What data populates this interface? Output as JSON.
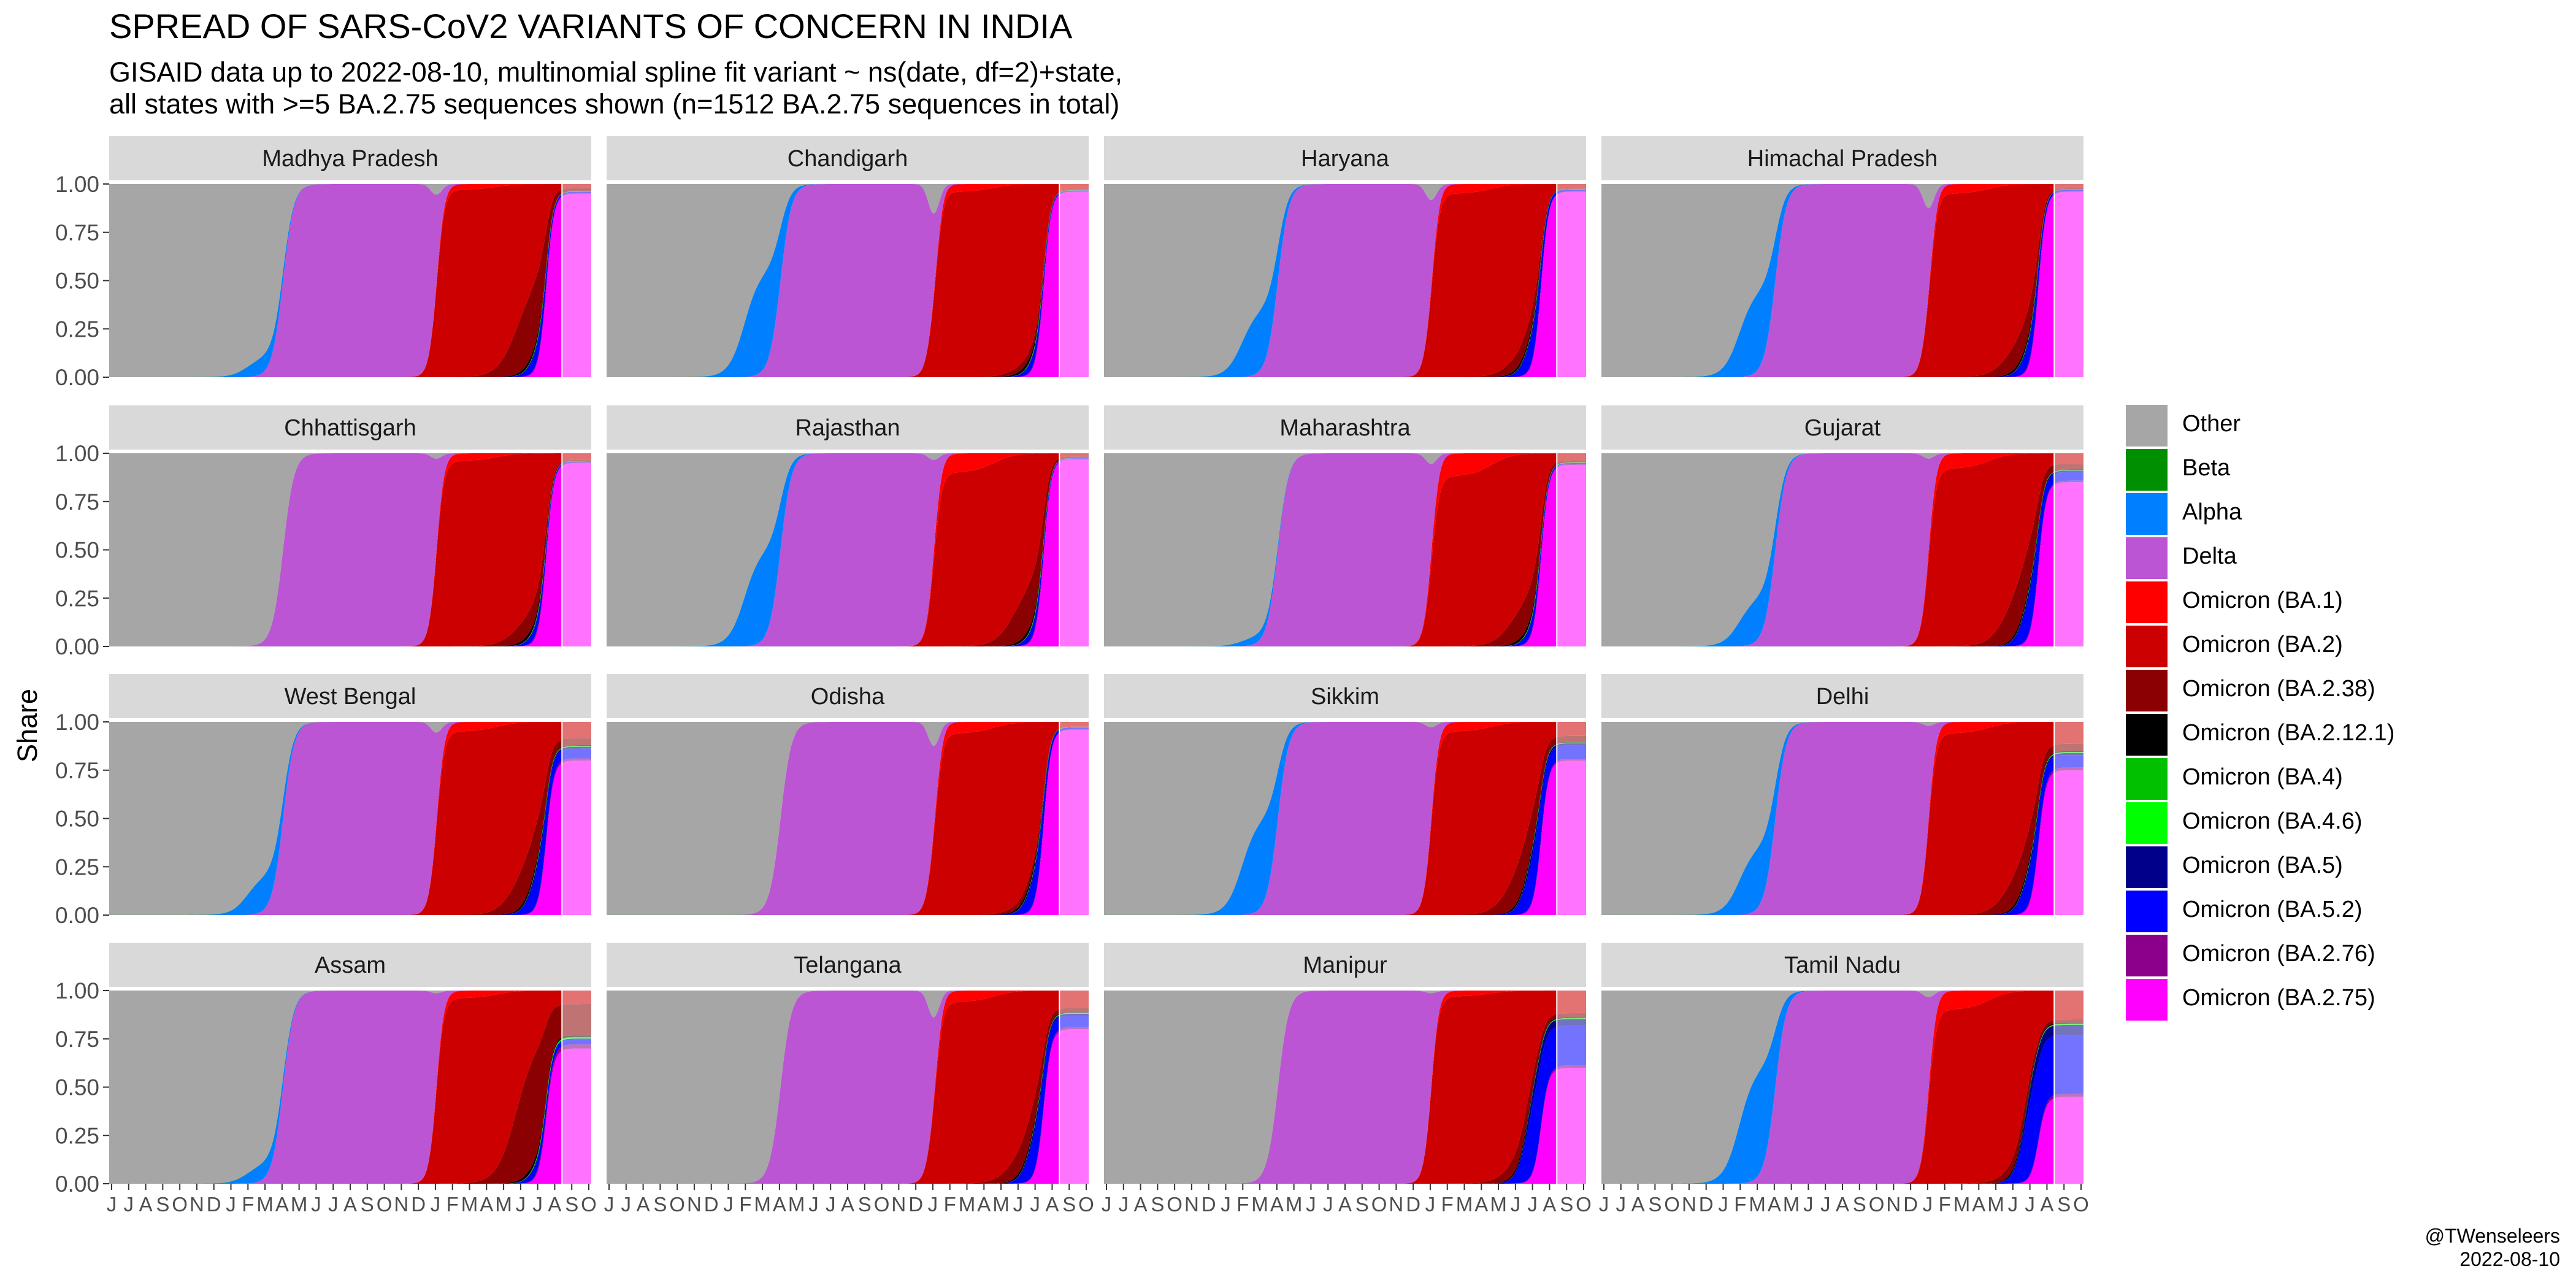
{
  "header": {
    "title": "SPREAD OF SARS-CoV2 VARIANTS OF CONCERN IN INDIA",
    "subtitle_line1": "GISAID data up to 2022-08-10, multinomial spline fit variant ~ ns(date, df=2)+state,",
    "subtitle_line2": "all states with >=5 BA.2.75 sequences shown (n=1512 BA.2.75 sequences in total)"
  },
  "credit": {
    "handle": "@TWenseleers",
    "date": "2022-08-10"
  },
  "chart_data": {
    "type": "area",
    "stacked": "fill",
    "ylabel": "Share",
    "ylim": [
      0,
      1
    ],
    "y_ticks": [
      "0.00",
      "0.25",
      "0.50",
      "0.75",
      "1.00"
    ],
    "x_ticks": [
      "J",
      "J",
      "A",
      "S",
      "O",
      "N",
      "D",
      "J",
      "F",
      "M",
      "A",
      "M",
      "J",
      "J",
      "A",
      "S",
      "O",
      "N",
      "D",
      "J",
      "F",
      "M",
      "A",
      "M",
      "J",
      "J",
      "A",
      "S",
      "O"
    ],
    "x_range_months": [
      "2020-06",
      "2022-10"
    ],
    "fitted_data_end": "2022-08-10",
    "legend_position": "right",
    "variants": [
      {
        "name": "Other",
        "color": "#A6A6A6"
      },
      {
        "name": "Beta",
        "color": "#008F00"
      },
      {
        "name": "Alpha",
        "color": "#0080FF"
      },
      {
        "name": "Delta",
        "color": "#BB55D4"
      },
      {
        "name": "Omicron (BA.1)",
        "color": "#FF0000"
      },
      {
        "name": "Omicron (BA.2)",
        "color": "#CC0000"
      },
      {
        "name": "Omicron (BA.2.38)",
        "color": "#8B0000"
      },
      {
        "name": "Omicron (BA.2.12.1)",
        "color": "#000000"
      },
      {
        "name": "Omicron (BA.4)",
        "color": "#00C000"
      },
      {
        "name": "Omicron (BA.4.6)",
        "color": "#00FF00"
      },
      {
        "name": "Omicron (BA.5)",
        "color": "#00008B"
      },
      {
        "name": "Omicron (BA.5.2)",
        "color": "#0000FF"
      },
      {
        "name": "Omicron (BA.2.76)",
        "color": "#8B008B"
      },
      {
        "name": "Omicron (BA.2.75)",
        "color": "#FF00FF"
      }
    ],
    "panels": [
      {
        "state": "Madhya Pradesh",
        "alpha_w": 0.1,
        "dip": 0.08,
        "ba1": 0.03,
        "ba238": 0.45,
        "ba5": 0.15,
        "ba275": 0.95
      },
      {
        "state": "Chandigarh",
        "alpha_w": 0.55,
        "dip": 0.22,
        "ba1": 0.04,
        "ba238": 0.05,
        "ba5": 0.1,
        "ba275": 0.96
      },
      {
        "state": "Haryana",
        "alpha_w": 0.35,
        "dip": 0.12,
        "ba1": 0.05,
        "ba238": 0.12,
        "ba5": 0.25,
        "ba275": 0.96
      },
      {
        "state": "Himachal Pradesh",
        "alpha_w": 0.45,
        "dip": 0.18,
        "ba1": 0.05,
        "ba238": 0.2,
        "ba5": 0.2,
        "ba275": 0.96
      },
      {
        "state": "Chhattisgarh",
        "alpha_w": 0.0,
        "dip": 0.04,
        "ba1": 0.04,
        "ba238": 0.15,
        "ba5": 0.1,
        "ba275": 0.95
      },
      {
        "state": "Rajasthan",
        "alpha_w": 0.5,
        "dip": 0.05,
        "ba1": 0.1,
        "ba238": 0.3,
        "ba5": 0.1,
        "ba275": 0.97
      },
      {
        "state": "Maharashtra",
        "alpha_w": 0.05,
        "dip": 0.08,
        "ba1": 0.12,
        "ba238": 0.22,
        "ba5": 0.1,
        "ba275": 0.94
      },
      {
        "state": "Gujarat",
        "alpha_w": 0.25,
        "dip": 0.04,
        "ba1": 0.08,
        "ba238": 0.35,
        "ba5": 0.35,
        "ba275": 0.85
      },
      {
        "state": "West Bengal",
        "alpha_w": 0.2,
        "dip": 0.08,
        "ba1": 0.05,
        "ba238": 0.3,
        "ba5": 0.3,
        "ba275": 0.8
      },
      {
        "state": "Odisha",
        "alpha_w": 0.0,
        "dip": 0.18,
        "ba1": 0.06,
        "ba238": 0.05,
        "ba5": 0.25,
        "ba275": 0.96
      },
      {
        "state": "Sikkim",
        "alpha_w": 0.5,
        "dip": 0.04,
        "ba1": 0.05,
        "ba238": 0.3,
        "ba5": 0.4,
        "ba275": 0.8
      },
      {
        "state": "Delhi",
        "alpha_w": 0.35,
        "dip": 0.03,
        "ba1": 0.06,
        "ba238": 0.25,
        "ba5": 0.3,
        "ba275": 0.75
      },
      {
        "state": "Assam",
        "alpha_w": 0.1,
        "dip": 0.02,
        "ba1": 0.04,
        "ba238": 0.7,
        "ba5": 0.1,
        "ba275": 0.7
      },
      {
        "state": "Telangana",
        "alpha_w": 0.0,
        "dip": 0.2,
        "ba1": 0.06,
        "ba238": 0.2,
        "ba5": 0.35,
        "ba275": 0.8
      },
      {
        "state": "Manipur",
        "alpha_w": 0.0,
        "dip": 0.02,
        "ba1": 0.03,
        "ba238": 0.15,
        "ba5": 0.6,
        "ba275": 0.6
      },
      {
        "state": "Tamil Nadu",
        "alpha_w": 0.6,
        "dip": 0.05,
        "ba1": 0.1,
        "ba238": 0.1,
        "ba5": 0.65,
        "ba275": 0.45
      }
    ]
  }
}
